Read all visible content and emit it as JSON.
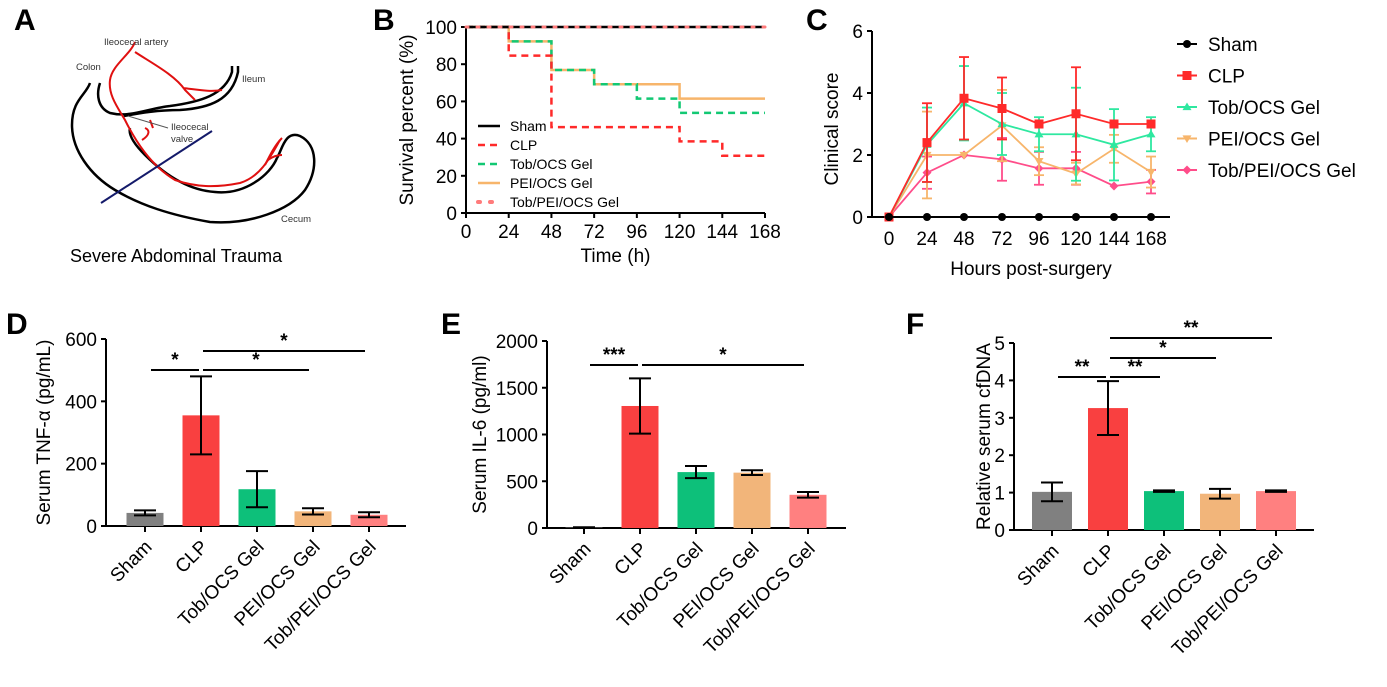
{
  "panels": {
    "A": {
      "letter": "A"
    },
    "B": {
      "letter": "B"
    },
    "C": {
      "letter": "C"
    },
    "D": {
      "letter": "D"
    },
    "E": {
      "letter": "E"
    },
    "F": {
      "letter": "F"
    }
  },
  "diagram": {
    "labels": {
      "artery": "Ileocecal artery",
      "colon": "Colon",
      "ileum": "Ileum",
      "valve_line1": "Ileocecal",
      "valve_line2": "valve",
      "cecum": "Cecum"
    },
    "caption": "Severe Abdominal  Trauma"
  },
  "colors": {
    "sham": "#000000",
    "clp": "#ff2a2a",
    "tob_ocs": "#12c873",
    "pei_ocs": "#f7b56b",
    "tob_pei_ocs": "#ff7b7b",
    "c_tob_ocs": "#2ee8a0",
    "c_pei_ocs": "#f7b56b",
    "c_tob_pei_ocs": "#ff4d8a",
    "bar_sham": "#808080",
    "bar_clp": "#f94040",
    "bar_tob_ocs": "#0dc07a",
    "bar_pei_ocs": "#f2b57a",
    "bar_tob_pei_ocs": "#ff8080"
  },
  "chart_data": [
    {
      "id": "B",
      "type": "line",
      "subtype": "kaplan-meier-step",
      "title": "",
      "xlabel": "Time (h)",
      "ylabel": "Survival percent (%)",
      "xlim": [
        0,
        168
      ],
      "ylim": [
        0,
        100
      ],
      "xticks": [
        0,
        24,
        48,
        72,
        96,
        120,
        144,
        168
      ],
      "yticks": [
        0,
        20,
        40,
        60,
        80,
        100
      ],
      "legend_position": "bottom-left",
      "series": [
        {
          "name": "Sham",
          "style": "solid",
          "color_key": "sham",
          "steps": [
            [
              0,
              100
            ],
            [
              168,
              100
            ]
          ]
        },
        {
          "name": "CLP",
          "style": "dashed",
          "color_key": "clp",
          "steps": [
            [
              0,
              100
            ],
            [
              24,
              84.6
            ],
            [
              48,
              46.2
            ],
            [
              120,
              38.5
            ],
            [
              144,
              30.8
            ],
            [
              168,
              30.8
            ]
          ]
        },
        {
          "name": "Tob/OCS Gel",
          "style": "dashed",
          "color_key": "tob_ocs",
          "steps": [
            [
              0,
              100
            ],
            [
              24,
              92.3
            ],
            [
              48,
              76.9
            ],
            [
              72,
              69.2
            ],
            [
              96,
              61.5
            ],
            [
              120,
              53.8
            ],
            [
              168,
              53.8
            ]
          ]
        },
        {
          "name": "PEI/OCS Gel",
          "style": "solid",
          "color_key": "pei_ocs",
          "steps": [
            [
              0,
              100
            ],
            [
              24,
              92.3
            ],
            [
              48,
              76.9
            ],
            [
              72,
              69.2
            ],
            [
              120,
              61.5
            ],
            [
              168,
              61.5
            ]
          ]
        },
        {
          "name": "Tob/PEI/OCS Gel",
          "style": "dotted",
          "color_key": "tob_pei_ocs",
          "steps": [
            [
              0,
              100
            ],
            [
              168,
              100
            ]
          ]
        }
      ]
    },
    {
      "id": "C",
      "type": "line",
      "title": "",
      "xlabel": "Hours post-surgery",
      "ylabel": "Clinical score",
      "x": [
        0,
        24,
        48,
        72,
        96,
        120,
        144,
        168
      ],
      "xlim": [
        0,
        168
      ],
      "ylim": [
        0,
        6
      ],
      "yticks": [
        0,
        2,
        4,
        6
      ],
      "legend_position": "right",
      "series": [
        {
          "name": "Sham",
          "marker": "circle",
          "color_key": "sham",
          "values": [
            0,
            0,
            0,
            0,
            0,
            0,
            0,
            0
          ],
          "err": [
            0,
            0,
            0,
            0,
            0,
            0,
            0,
            0
          ]
        },
        {
          "name": "CLP",
          "marker": "square",
          "color_key": "clp",
          "values": [
            0,
            2.4,
            3.83,
            3.5,
            3.0,
            3.33,
            3.0,
            3.0
          ],
          "err": [
            0,
            1.27,
            1.33,
            1.0,
            0,
            1.5,
            0,
            0
          ]
        },
        {
          "name": "Tob/OCS Gel",
          "marker": "triangle-up",
          "color_key": "c_tob_ocs",
          "values": [
            0,
            2.33,
            3.67,
            3.0,
            2.67,
            2.67,
            2.33,
            2.67
          ],
          "err": [
            0,
            1.2,
            1.2,
            1.0,
            0.55,
            1.5,
            1.15,
            0.55
          ]
        },
        {
          "name": "PEI/OCS Gel",
          "marker": "triangle-down",
          "color_key": "c_pei_ocs",
          "values": [
            0,
            2.0,
            2.0,
            2.95,
            1.8,
            1.4,
            2.2,
            1.45
          ],
          "err": [
            0,
            1.4,
            0,
            1.15,
            0.45,
            0.35,
            0.45,
            0.5
          ]
        },
        {
          "name": "Tob/PEI/OCS Gel",
          "marker": "diamond",
          "color_key": "c_tob_pei_ocs",
          "values": [
            0,
            1.43,
            2.0,
            1.86,
            1.57,
            1.57,
            1.0,
            1.14
          ],
          "err": [
            0,
            0.52,
            0,
            0.69,
            0.53,
            0.53,
            0,
            0.38
          ]
        }
      ]
    },
    {
      "id": "D",
      "type": "bar",
      "title": "",
      "xlabel": "",
      "ylabel": "Serum TNF-α (pg/mL)",
      "categories": [
        "Sham",
        "CLP",
        "Tob/OCS Gel",
        "PEI/OCS Gel",
        "Tob/PEI/OCS Gel"
      ],
      "values": [
        42,
        355,
        118,
        47,
        36
      ],
      "err": [
        8,
        125,
        58,
        10,
        8
      ],
      "ylim": [
        0,
        600
      ],
      "yticks": [
        0,
        200,
        400,
        600
      ],
      "significance": [
        {
          "from": 0,
          "to": 1,
          "label": "*",
          "level": 0
        },
        {
          "from": 1,
          "to": 3,
          "label": "*",
          "level": 0
        },
        {
          "from": 1,
          "to": 4,
          "label": "*",
          "level": 1
        }
      ]
    },
    {
      "id": "E",
      "type": "bar",
      "title": "",
      "xlabel": "",
      "ylabel": "Serum IL-6 (pg/ml)",
      "categories": [
        "Sham",
        "CLP",
        "Tob/OCS Gel",
        "PEI/OCS Gel",
        "Tob/PEI/OCS Gel"
      ],
      "values": [
        5,
        1305,
        598,
        592,
        355
      ],
      "err": [
        3,
        295,
        65,
        25,
        30
      ],
      "ylim": [
        0,
        2000
      ],
      "yticks": [
        0,
        500,
        1000,
        1500,
        2000
      ],
      "significance": [
        {
          "from": 0,
          "to": 1,
          "label": "***",
          "level": 0
        },
        {
          "from": 1,
          "to": 4,
          "label": "*",
          "level": 0
        }
      ]
    },
    {
      "id": "F",
      "type": "bar",
      "title": "",
      "xlabel": "",
      "ylabel": "Relative serum cfDNA",
      "categories": [
        "Sham",
        "CLP",
        "Tob/OCS Gel",
        "PEI/OCS Gel",
        "Tob/PEI/OCS Gel"
      ],
      "values": [
        1.02,
        3.26,
        1.04,
        0.97,
        1.04
      ],
      "err": [
        0.25,
        0.72,
        0.02,
        0.13,
        0.02
      ],
      "ylim": [
        0,
        5
      ],
      "yticks": [
        0,
        1,
        2,
        3,
        4,
        5
      ],
      "significance": [
        {
          "from": 0,
          "to": 1,
          "label": "**",
          "level": 0
        },
        {
          "from": 1,
          "to": 2,
          "label": "**",
          "level": 0
        },
        {
          "from": 1,
          "to": 3,
          "label": "*",
          "level": 1
        },
        {
          "from": 1,
          "to": 4,
          "label": "**",
          "level": 2
        }
      ]
    }
  ]
}
